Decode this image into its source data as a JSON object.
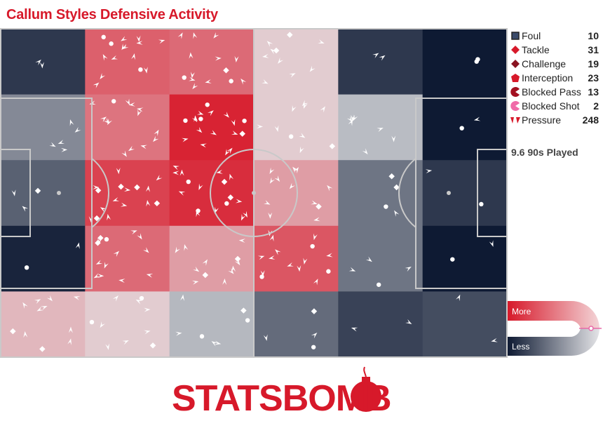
{
  "title": "Callum Styles Defensive Activity",
  "colors": {
    "title": "#d7192a",
    "more": "#d7192a",
    "less": "#0e1a33",
    "marker": "#ffffff",
    "accent": "#d7192a"
  },
  "legend": [
    {
      "label": "Foul",
      "count": "10",
      "icon": "square-icon",
      "color": "#3a4a6a"
    },
    {
      "label": "Tackle",
      "count": "31",
      "icon": "diamond-icon",
      "color": "#d7192a"
    },
    {
      "label": "Challenge",
      "count": "19",
      "icon": "diamond-dark-icon",
      "color": "#8a1320"
    },
    {
      "label": "Interception",
      "count": "23",
      "icon": "pentagon-icon",
      "color": "#d7192a"
    },
    {
      "label": "Blocked Pass",
      "count": "13",
      "icon": "pacman-icon",
      "color": "#a31020"
    },
    {
      "label": "Blocked Shot",
      "count": "2",
      "icon": "pacman-light-icon",
      "color": "#f06aa8"
    },
    {
      "label": "Pressure",
      "count": "248",
      "icon": "pressure-icon",
      "color": "#d7192a"
    }
  ],
  "played": "9.6 90s Played",
  "scale": {
    "more": "More",
    "less": "Less"
  },
  "brand": "STATSBOMB",
  "chart_data": {
    "type": "heatmap",
    "grid_note": "6 columns x 5 rows zone heatmap over a football pitch; intensity from -1 (Less, navy) to 1 (More, red)",
    "intensity": [
      [
        -0.85,
        0.65,
        0.6,
        0.12,
        -0.85,
        -1.0
      ],
      [
        -0.45,
        0.55,
        0.95,
        0.12,
        -0.2,
        -1.0
      ],
      [
        -0.65,
        0.8,
        0.9,
        0.35,
        -0.55,
        -0.85
      ],
      [
        -0.95,
        0.6,
        0.35,
        0.7,
        -0.55,
        -1.0
      ],
      [
        0.22,
        0.12,
        -0.22,
        -0.6,
        -0.8,
        -0.75
      ]
    ]
  }
}
